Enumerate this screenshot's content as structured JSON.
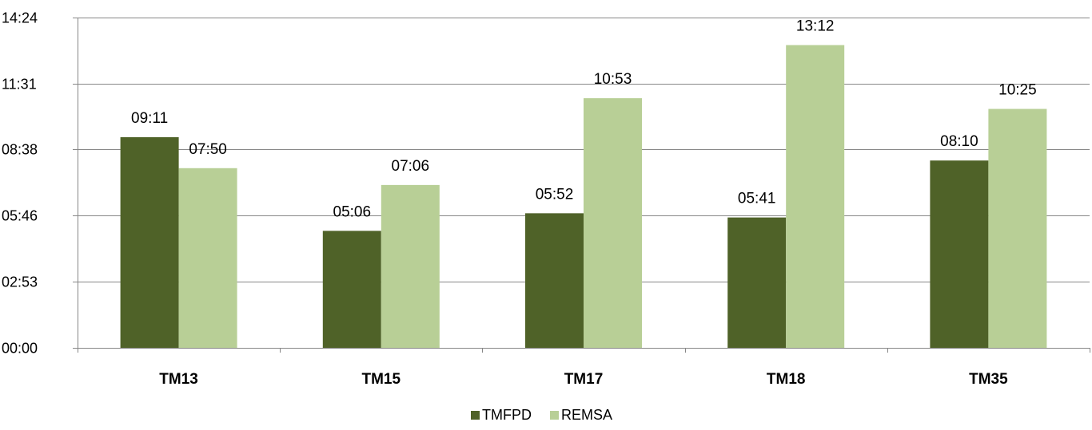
{
  "chart_data": {
    "type": "bar",
    "categories": [
      "TM13",
      "TM15",
      "TM17",
      "TM18",
      "TM35"
    ],
    "series": [
      {
        "name": "TMFPD",
        "color": "#4f6228",
        "values": [
          551,
          306,
          352,
          341,
          490
        ],
        "labels": [
          "09:11",
          "05:06",
          "05:52",
          "05:41",
          "08:10"
        ]
      },
      {
        "name": "REMSA",
        "color": "#b8cf96",
        "values": [
          470,
          426,
          653,
          792,
          625
        ],
        "labels": [
          "07:50",
          "07:06",
          "10:53",
          "13:12",
          "10:25"
        ]
      }
    ],
    "yaxis": {
      "unit": "seconds",
      "ticks": [
        0,
        173,
        346,
        519,
        691,
        864
      ],
      "tick_labels": [
        "00:00",
        "02:53",
        "05:46",
        "08:38",
        "11:31",
        "14:24"
      ],
      "ylim": [
        0,
        864
      ]
    },
    "grid": true,
    "legend_position": "bottom-center",
    "title": "",
    "xlabel": "",
    "ylabel": ""
  }
}
